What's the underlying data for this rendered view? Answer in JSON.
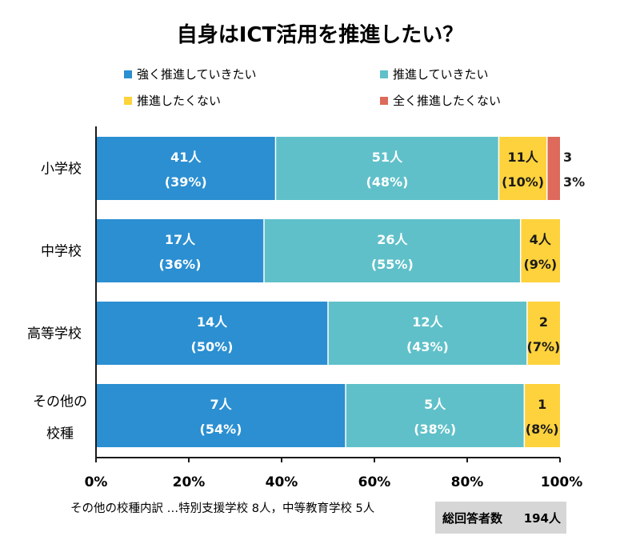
{
  "chart_data": {
    "type": "bar",
    "orientation": "horizontal",
    "stacked": true,
    "normalized": true,
    "title": "自身はICT活用を推進したい？",
    "categories": [
      [
        "小学校"
      ],
      [
        "中学校"
      ],
      [
        "高等学校"
      ],
      [
        "その他の",
        "校種"
      ]
    ],
    "series": [
      {
        "name": "強く推進していきたい",
        "color": "#2b8fd1",
        "counts": [
          "41人",
          "17人",
          "14人",
          "7人"
        ],
        "percent_labels": [
          "(39%)",
          "(36%)",
          "(50%)",
          "(54%)"
        ],
        "values": [
          38.7,
          36.2,
          50.0,
          53.8
        ]
      },
      {
        "name": "推進していきたい",
        "color": "#5fc0c9",
        "counts": [
          "51人",
          "26人",
          "12人",
          "5人"
        ],
        "percent_labels": [
          "(48%)",
          "(55%)",
          "(43%)",
          "(38%)"
        ],
        "values": [
          48.1,
          55.3,
          42.9,
          38.5
        ]
      },
      {
        "name": "推進したくない",
        "color": "#fdd23c",
        "counts": [
          "11人",
          "4人",
          "2",
          "1"
        ],
        "percent_labels": [
          "(10%)",
          "(9%)",
          "(7%)",
          "(8%)"
        ],
        "values": [
          10.4,
          8.5,
          7.1,
          7.7
        ]
      },
      {
        "name": "全く推進したくない",
        "color": "#dd6a5a",
        "counts": [
          "3",
          "",
          "",
          ""
        ],
        "percent_labels": [
          "3%",
          "",
          "",
          ""
        ],
        "values": [
          2.8,
          0,
          0,
          0
        ]
      }
    ],
    "xlim": [
      0,
      100
    ],
    "xticks": [
      "0%",
      "20%",
      "40%",
      "60%",
      "80%",
      "100%"
    ],
    "legend_position": "top",
    "grid": false
  },
  "footnote": "その他の校種内訳 …特別支援学校 8人，中等教育学校 5人",
  "total": {
    "label": "総回答者数",
    "value": "194人"
  }
}
